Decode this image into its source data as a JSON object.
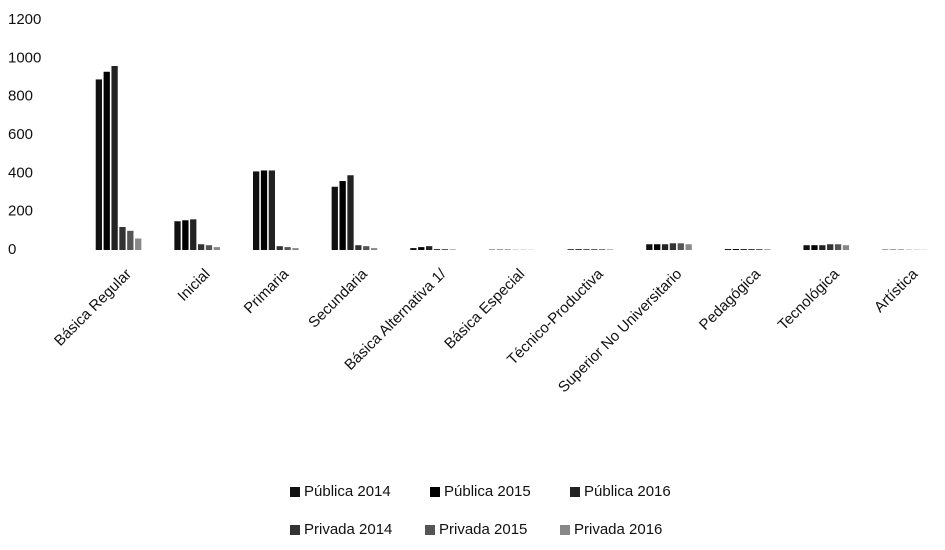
{
  "chart_data": {
    "type": "bar",
    "categories": [
      "Básica Regular",
      "Inicial",
      "Primaria",
      "Secundaria",
      "Básica Alternativa 1/",
      "Básica Especial",
      "Técnico-Productiva",
      "Superior No Universitario",
      "Pedagógica",
      "Tecnológica",
      "Artística"
    ],
    "series": [
      {
        "name": "Pública 2014",
        "color": "#111111",
        "values": [
          890,
          150,
          410,
          330,
          10,
          2,
          4,
          30,
          5,
          25,
          2
        ]
      },
      {
        "name": "Pública 2015",
        "color": "#000000",
        "values": [
          930,
          155,
          415,
          360,
          15,
          2,
          4,
          30,
          5,
          25,
          2
        ]
      },
      {
        "name": "Pública 2016",
        "color": "#222222",
        "values": [
          960,
          160,
          415,
          390,
          20,
          2,
          4,
          30,
          5,
          25,
          2
        ]
      },
      {
        "name": "Privada 2014",
        "color": "#333333",
        "values": [
          120,
          30,
          20,
          25,
          5,
          1,
          4,
          35,
          5,
          30,
          1
        ]
      },
      {
        "name": "Privada 2015",
        "color": "#555555",
        "values": [
          100,
          25,
          15,
          20,
          5,
          1,
          4,
          35,
          5,
          30,
          1
        ]
      },
      {
        "name": "Privada 2016",
        "color": "#888888",
        "values": [
          60,
          15,
          10,
          10,
          3,
          1,
          3,
          30,
          4,
          25,
          1
        ]
      }
    ],
    "ylim": [
      0,
      1200
    ],
    "yticks": [
      0,
      200,
      400,
      600,
      800,
      1000,
      1200
    ],
    "grid": false
  }
}
